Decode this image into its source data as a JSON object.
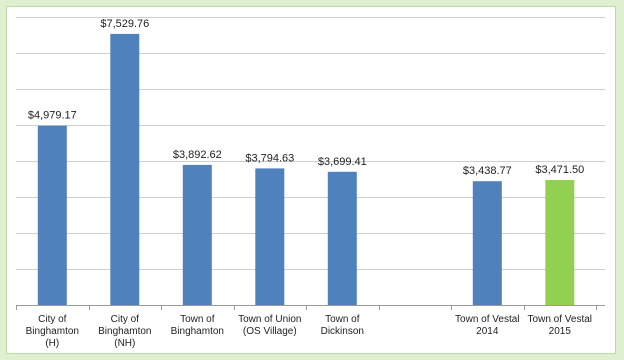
{
  "chart_data": {
    "type": "bar",
    "title": "",
    "xlabel": "",
    "ylabel": "",
    "ylim": [
      0,
      8000
    ],
    "grid": true,
    "legend": "none",
    "colors": {
      "default": "#4f81bd",
      "highlight": "#92d050",
      "grid": "#cfcfcf",
      "axis": "#9a9a9a",
      "background": "#dff0d0"
    },
    "categories": [
      "City of Binghamton (H)",
      "City of Binghamton (NH)",
      "Town of Binghamton",
      "Town of Union (OS Village)",
      "Town of Dickinson",
      "",
      "Town of Vestal 2014",
      "Town of Vestal 2015"
    ],
    "tick_lines": [
      [
        "City of",
        "Binghamton",
        "(H)"
      ],
      [
        "City of",
        "Binghamton",
        "(NH)"
      ],
      [
        "Town of",
        "Binghamton"
      ],
      [
        "Town of Union",
        "(OS Village)"
      ],
      [
        "Town of",
        "Dickinson"
      ],
      [],
      [
        "Town of Vestal",
        "2014"
      ],
      [
        "Town of Vestal",
        "2015"
      ]
    ],
    "values": [
      4979.17,
      7529.76,
      3892.62,
      3794.63,
      3699.41,
      null,
      3438.77,
      3471.5
    ],
    "data_labels": [
      "$4,979.17",
      "$7,529.76",
      "$3,892.62",
      "$3,794.63",
      "$3,699.41",
      "",
      "$3,438.77",
      "$3,471.50"
    ],
    "highlight_index": 7
  }
}
